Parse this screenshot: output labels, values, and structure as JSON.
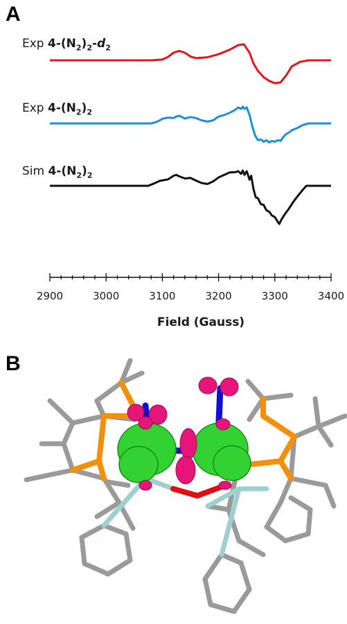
{
  "panel_a_letter": "A",
  "panel_b_letter": "B",
  "labels": {
    "red": {
      "prefix": "Exp",
      "compound": "4-(N",
      "sub": "2",
      "close": ")",
      "sub2": "2",
      "suffix_dash": "-",
      "suffix_italic": "d",
      "suffix_sub": "2"
    },
    "blue": {
      "prefix": "Exp",
      "compound": "4-(N",
      "sub": "2",
      "close": ")",
      "sub2": "2"
    },
    "black": {
      "prefix": "Sim",
      "compound": "4-(N",
      "sub": "2",
      "close": ")",
      "sub2": "2"
    }
  },
  "chart_data": {
    "type": "line",
    "xlabel": "Field (Gauss)",
    "xlim": [
      2900,
      3400
    ],
    "x_ticks": [
      2900,
      3000,
      3100,
      3200,
      3300,
      3400
    ],
    "x_tick_labels": [
      "2900",
      "3000",
      "3100",
      "3200",
      "3300",
      "3400"
    ],
    "yaxis_shown": false,
    "colors": {
      "red": "#e8141c",
      "blue": "#1f8fd6",
      "black": "#111111"
    },
    "series": [
      {
        "name": "Exp 4-(N2)2-d2",
        "color": "#e8141c",
        "x": [
          2900,
          3080,
          3100,
          3110,
          3120,
          3130,
          3140,
          3150,
          3160,
          3180,
          3200,
          3220,
          3235,
          3245,
          3255,
          3262,
          3270,
          3280,
          3290,
          3300,
          3310,
          3320,
          3330,
          3345,
          3360,
          3400
        ],
        "y": [
          0,
          0,
          0.05,
          0.22,
          0.5,
          0.62,
          0.5,
          0.25,
          0.14,
          0.2,
          0.4,
          0.7,
          1.0,
          1.05,
          0.5,
          -0.2,
          -0.7,
          -1.1,
          -1.35,
          -1.5,
          -1.45,
          -1.0,
          -0.4,
          -0.1,
          0,
          0
        ]
      },
      {
        "name": "Exp 4-(N2)2",
        "color": "#1f8fd6",
        "x": [
          2900,
          3080,
          3090,
          3100,
          3110,
          3120,
          3125,
          3130,
          3135,
          3140,
          3150,
          3160,
          3170,
          3180,
          3190,
          3200,
          3210,
          3220,
          3230,
          3235,
          3240,
          3243,
          3246,
          3250,
          3255,
          3260,
          3265,
          3270,
          3275,
          3280,
          3285,
          3290,
          3295,
          3300,
          3305,
          3310,
          3315,
          3320,
          3325,
          3330,
          3340,
          3350,
          3360,
          3400
        ],
        "y": [
          0,
          0,
          0.1,
          0.3,
          0.38,
          0.35,
          0.45,
          0.5,
          0.42,
          0.32,
          0.42,
          0.35,
          0.2,
          0.12,
          0.2,
          0.45,
          0.55,
          0.7,
          0.9,
          1.05,
          0.95,
          1.1,
          0.95,
          1.05,
          0.55,
          -0.2,
          -0.8,
          -1.1,
          -1.05,
          -1.2,
          -1.1,
          -1.25,
          -1.15,
          -1.2,
          -1.1,
          -1.15,
          -0.9,
          -0.7,
          -0.6,
          -0.45,
          -0.3,
          -0.1,
          0,
          0
        ]
      },
      {
        "name": "Sim 4-(N2)2",
        "color": "#111111",
        "x": [
          2900,
          3075,
          3085,
          3095,
          3100,
          3110,
          3120,
          3125,
          3130,
          3140,
          3150,
          3160,
          3170,
          3180,
          3190,
          3200,
          3210,
          3220,
          3230,
          3235,
          3240,
          3243,
          3246,
          3250,
          3255,
          3258,
          3262,
          3266,
          3270,
          3275,
          3280,
          3285,
          3290,
          3295,
          3300,
          3305,
          3308,
          3312,
          3318,
          3325,
          3332,
          3340,
          3350,
          3356,
          3400
        ],
        "y": [
          0,
          0,
          0.15,
          0.32,
          0.36,
          0.42,
          0.66,
          0.72,
          0.62,
          0.48,
          0.52,
          0.34,
          0.18,
          0.12,
          0.28,
          0.55,
          0.72,
          0.88,
          0.9,
          0.96,
          0.78,
          1.0,
          0.72,
          0.96,
          0.4,
          0.66,
          -0.2,
          -0.75,
          -0.82,
          -1.2,
          -1.25,
          -1.6,
          -1.7,
          -1.95,
          -2.05,
          -2.35,
          -2.5,
          -2.2,
          -1.85,
          -1.5,
          -1.1,
          -0.7,
          -0.25,
          0,
          0
        ]
      }
    ]
  }
}
